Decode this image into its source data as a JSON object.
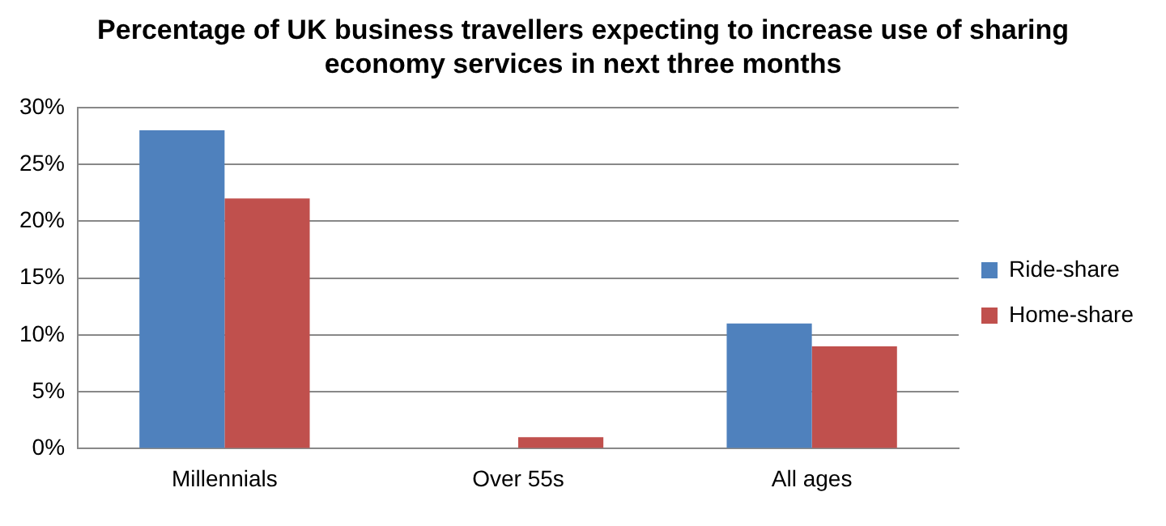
{
  "chart_data": {
    "type": "bar",
    "title": "Percentage of UK business travellers expecting to increase use of sharing economy services in next three months",
    "categories": [
      "Millennials",
      "Over 55s",
      "All ages"
    ],
    "series": [
      {
        "name": "Ride-share",
        "color": "#4f81bd",
        "values": [
          28,
          0,
          11
        ]
      },
      {
        "name": "Home-share",
        "color": "#c0504d",
        "values": [
          22,
          1,
          9
        ]
      }
    ],
    "ylim": [
      0,
      30
    ],
    "yticks": [
      {
        "value": 0,
        "label": "0%"
      },
      {
        "value": 5,
        "label": "5%"
      },
      {
        "value": 10,
        "label": "10%"
      },
      {
        "value": 15,
        "label": "15%"
      },
      {
        "value": 20,
        "label": "20%"
      },
      {
        "value": 25,
        "label": "25%"
      },
      {
        "value": 30,
        "label": "30%"
      }
    ],
    "grid": "y",
    "legend": "right"
  }
}
